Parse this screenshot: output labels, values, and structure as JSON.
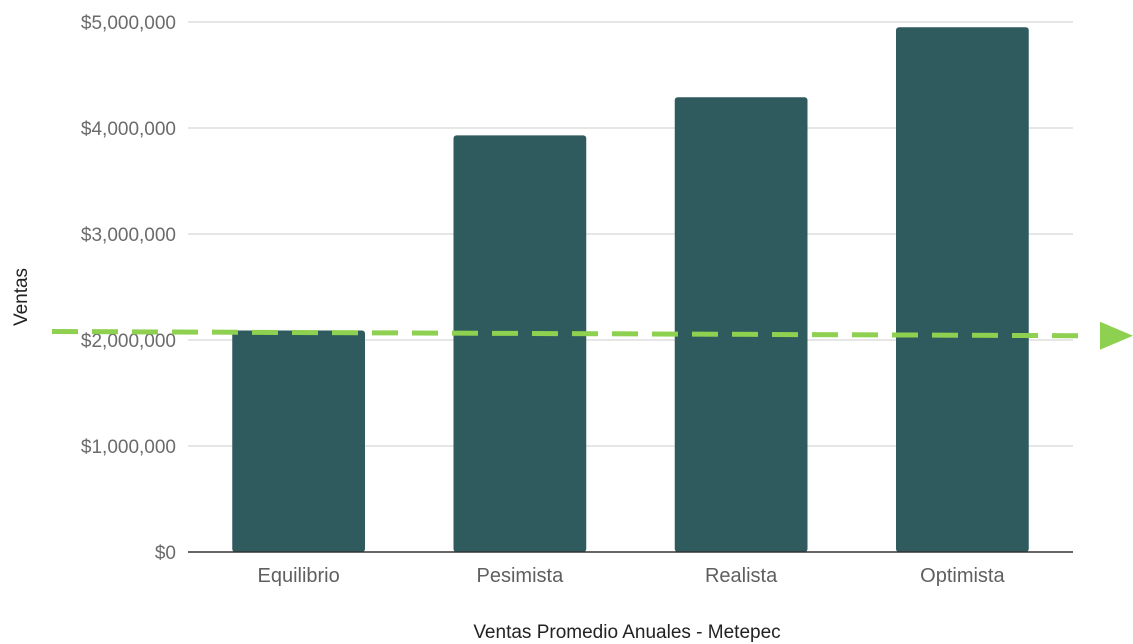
{
  "chart_data": {
    "type": "bar",
    "categories": [
      "Equilibrio",
      "Pesimista",
      "Realista",
      "Optimista"
    ],
    "values": [
      2090000,
      3930000,
      4290000,
      4950000
    ],
    "xlabel": "Ventas Promedio Anuales - Metepec",
    "ylabel": "Ventas",
    "ylim": [
      0,
      5000000
    ],
    "yticks": [
      0,
      1000000,
      2000000,
      3000000,
      4000000,
      5000000
    ],
    "ytick_labels": [
      "$0",
      "$1,000,000",
      "$2,000,000",
      "$3,000,000",
      "$4,000,000",
      "$5,000,000"
    ],
    "grid": true,
    "reference_line": {
      "style": "dashed",
      "arrow": true,
      "start_value": 2080000,
      "end_value": 2040000
    },
    "colors": {
      "bar": "#2f5b5e",
      "reference_line": "#8ed04f",
      "grid": "#d6d6d6",
      "baseline": "#333333"
    }
  }
}
